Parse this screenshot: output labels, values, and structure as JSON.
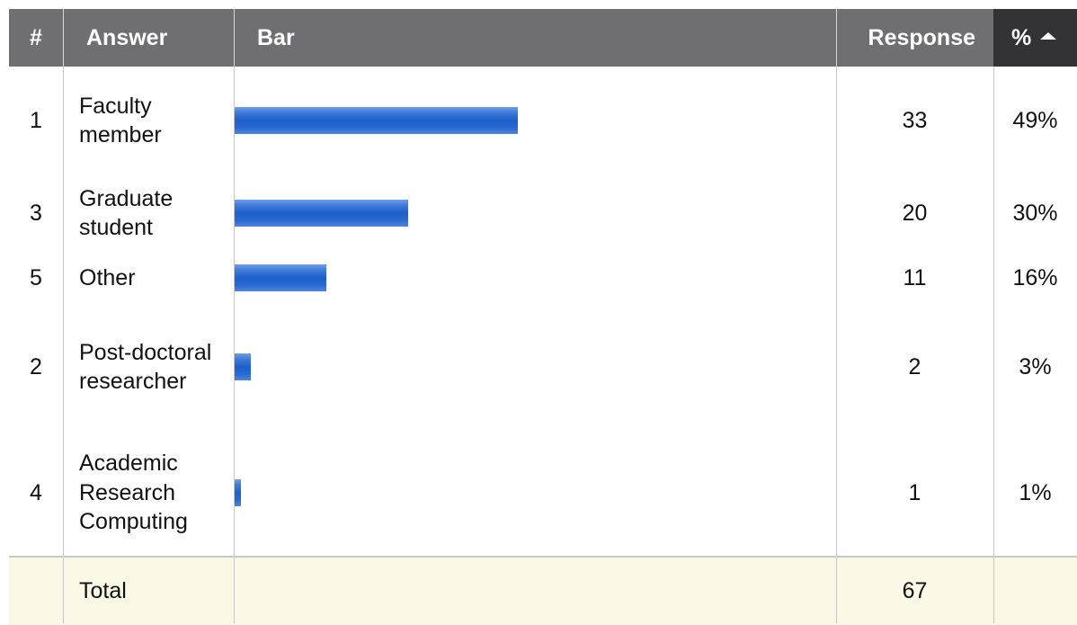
{
  "header": {
    "num": "#",
    "answer": "Answer",
    "bar": "Bar",
    "response": "Response",
    "percent": "%"
  },
  "rows": [
    {
      "num": "1",
      "answer": "Faculty member",
      "response": "33",
      "percent": "49%",
      "fraction": 0.49
    },
    {
      "num": "3",
      "answer": "Graduate student",
      "response": "20",
      "percent": "30%",
      "fraction": 0.3
    },
    {
      "num": "5",
      "answer": "Other",
      "response": "11",
      "percent": "16%",
      "fraction": 0.16
    },
    {
      "num": "2",
      "answer": "Post-doctoral researcher",
      "response": "2",
      "percent": "3%",
      "fraction": 0.03
    },
    {
      "num": "4",
      "answer": "Academic Research Computing",
      "response": "1",
      "percent": "1%",
      "fraction": 0.01
    }
  ],
  "total": {
    "label": "Total",
    "response": "67"
  },
  "colors": {
    "header_bg": "#6f6f73",
    "sorted_header_bg": "#333336",
    "bar": "#1d5fc9",
    "total_bg": "#fbf8e6"
  }
}
